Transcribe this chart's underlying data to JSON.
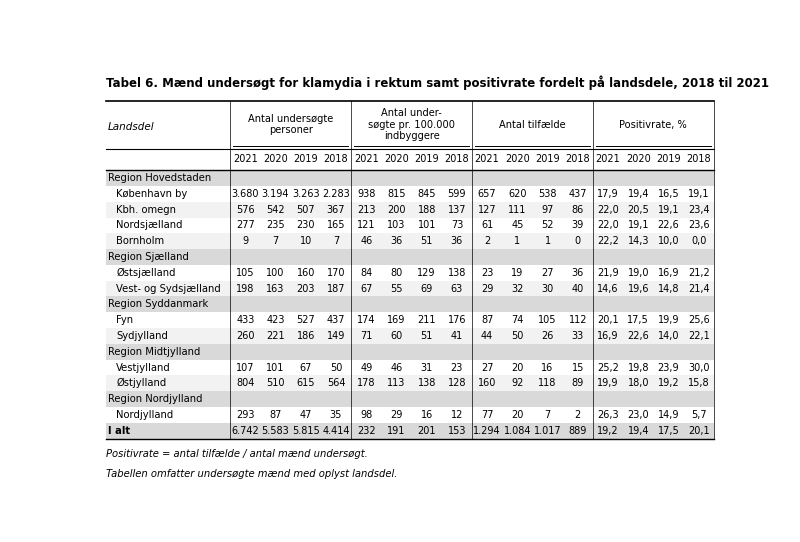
{
  "title": "Tabel 6. Mænd undersøgt for klamydia i rektum samt positivrate fordelt på landsdele, 2018 til 2021",
  "footnote1": "Positivrate = antal tilfælde / antal mænd undersøgt.",
  "footnote2": "Tabellen omfatter undersøgte mænd med oplyst landsdel.",
  "col_header_groups": [
    {
      "label": "Antal undersøgte\npersoner"
    },
    {
      "label": "Antal under-\nsøgte pr. 100.000\nindbyggere"
    },
    {
      "label": "Antal tilfælde"
    },
    {
      "label": "Positivrate, %"
    }
  ],
  "year_labels": [
    "2021",
    "2020",
    "2019",
    "2018"
  ],
  "landsdel_col": "Landsdel",
  "region_rows": [
    {
      "label": "Region Hovedstaden",
      "is_region": true
    },
    {
      "label": "København by",
      "is_region": false,
      "data": [
        "3.680",
        "3.194",
        "3.263",
        "2.283",
        "938",
        "815",
        "845",
        "599",
        "657",
        "620",
        "538",
        "437",
        "17,9",
        "19,4",
        "16,5",
        "19,1"
      ]
    },
    {
      "label": "Kbh. omegn",
      "is_region": false,
      "data": [
        "576",
        "542",
        "507",
        "367",
        "213",
        "200",
        "188",
        "137",
        "127",
        "111",
        "97",
        "86",
        "22,0",
        "20,5",
        "19,1",
        "23,4"
      ]
    },
    {
      "label": "Nordsjælland",
      "is_region": false,
      "data": [
        "277",
        "235",
        "230",
        "165",
        "121",
        "103",
        "101",
        "73",
        "61",
        "45",
        "52",
        "39",
        "22,0",
        "19,1",
        "22,6",
        "23,6"
      ]
    },
    {
      "label": "Bornholm",
      "is_region": false,
      "data": [
        "9",
        "7",
        "10",
        "7",
        "46",
        "36",
        "51",
        "36",
        "2",
        "1",
        "1",
        "0",
        "22,2",
        "14,3",
        "10,0",
        "0,0"
      ]
    },
    {
      "label": "Region Sjælland",
      "is_region": true
    },
    {
      "label": "Østsjælland",
      "is_region": false,
      "data": [
        "105",
        "100",
        "160",
        "170",
        "84",
        "80",
        "129",
        "138",
        "23",
        "19",
        "27",
        "36",
        "21,9",
        "19,0",
        "16,9",
        "21,2"
      ]
    },
    {
      "label": "Vest- og Sydsjælland",
      "is_region": false,
      "data": [
        "198",
        "163",
        "203",
        "187",
        "67",
        "55",
        "69",
        "63",
        "29",
        "32",
        "30",
        "40",
        "14,6",
        "19,6",
        "14,8",
        "21,4"
      ]
    },
    {
      "label": "Region Syddanmark",
      "is_region": true
    },
    {
      "label": "Fyn",
      "is_region": false,
      "data": [
        "433",
        "423",
        "527",
        "437",
        "174",
        "169",
        "211",
        "176",
        "87",
        "74",
        "105",
        "112",
        "20,1",
        "17,5",
        "19,9",
        "25,6"
      ]
    },
    {
      "label": "Sydjylland",
      "is_region": false,
      "data": [
        "260",
        "221",
        "186",
        "149",
        "71",
        "60",
        "51",
        "41",
        "44",
        "50",
        "26",
        "33",
        "16,9",
        "22,6",
        "14,0",
        "22,1"
      ]
    },
    {
      "label": "Region Midtjylland",
      "is_region": true
    },
    {
      "label": "Vestjylland",
      "is_region": false,
      "data": [
        "107",
        "101",
        "67",
        "50",
        "49",
        "46",
        "31",
        "23",
        "27",
        "20",
        "16",
        "15",
        "25,2",
        "19,8",
        "23,9",
        "30,0"
      ]
    },
    {
      "label": "Østjylland",
      "is_region": false,
      "data": [
        "804",
        "510",
        "615",
        "564",
        "178",
        "113",
        "138",
        "128",
        "160",
        "92",
        "118",
        "89",
        "19,9",
        "18,0",
        "19,2",
        "15,8"
      ]
    },
    {
      "label": "Region Nordjylland",
      "is_region": true
    },
    {
      "label": "Nordjylland",
      "is_region": false,
      "data": [
        "293",
        "87",
        "47",
        "35",
        "98",
        "29",
        "16",
        "12",
        "77",
        "20",
        "7",
        "2",
        "26,3",
        "23,0",
        "14,9",
        "5,7"
      ]
    },
    {
      "label": "I alt",
      "is_region": false,
      "is_total": true,
      "data": [
        "6.742",
        "5.583",
        "5.815",
        "4.414",
        "232",
        "191",
        "201",
        "153",
        "1.294",
        "1.084",
        "1.017",
        "889",
        "19,2",
        "19,4",
        "17,5",
        "20,1"
      ]
    }
  ],
  "bg_color": "#ffffff",
  "region_bg_color": "#d9d9d9",
  "alt_row_color": "#f2f2f2",
  "title_color": "#000000",
  "text_color": "#000000",
  "border_color": "#000000"
}
